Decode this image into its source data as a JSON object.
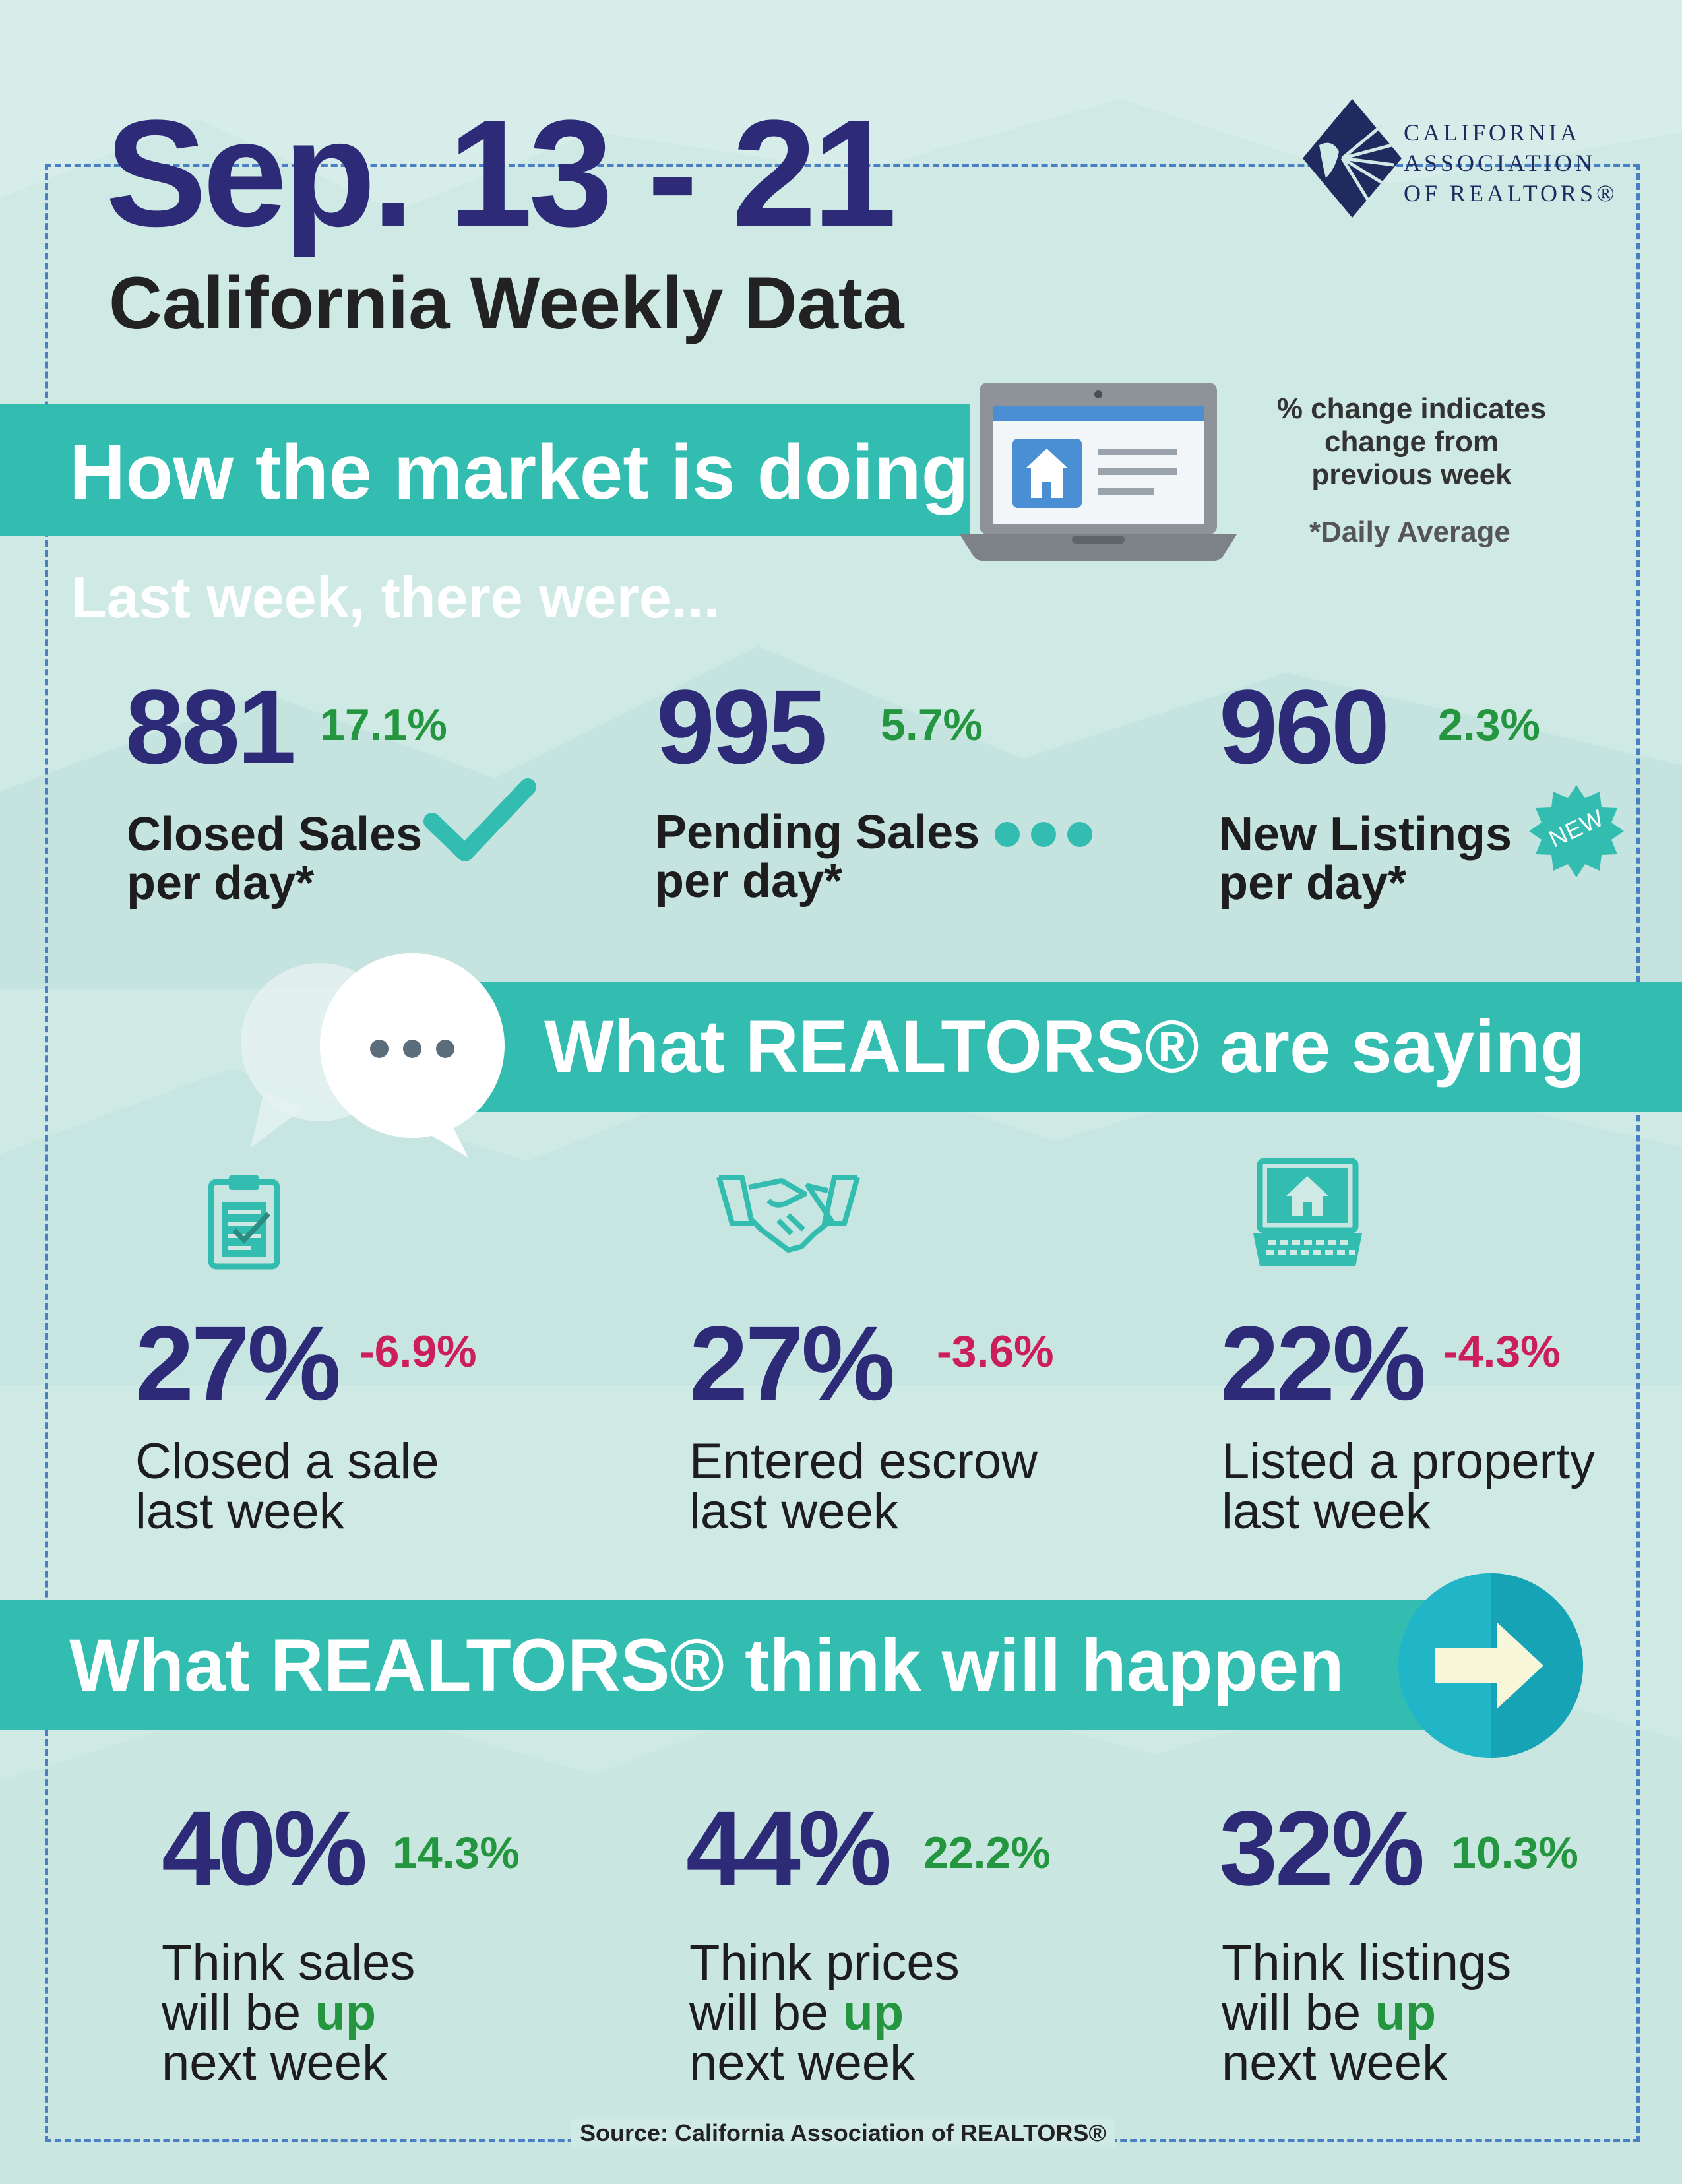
{
  "header": {
    "date_range": "Sep. 13 - 21",
    "subtitle": "California Weekly Data",
    "logo_lines": [
      "CALIFORNIA",
      "ASSOCIATION",
      "OF REALTORS®"
    ]
  },
  "market": {
    "title": "How the market is doing",
    "note_lines": [
      "% change indicates",
      "change from",
      "previous week"
    ],
    "daily_note": "*Daily Average",
    "intro": "Last week, there were...",
    "stats": [
      {
        "value": "881",
        "change": "17.1%",
        "label_line1": "Closed Sales",
        "label_line2": "per day*",
        "icon": "checkmark-icon"
      },
      {
        "value": "995",
        "change": "5.7%",
        "label_line1": "Pending Sales",
        "label_line2": "per day*",
        "icon": "dots-icon"
      },
      {
        "value": "960",
        "change": "2.3%",
        "label_line1": "New Listings",
        "label_line2": "per day*",
        "icon": "new-badge-icon",
        "badge_text": "NEW"
      }
    ]
  },
  "saying": {
    "title": "What REALTORS® are saying",
    "stats": [
      {
        "value": "27%",
        "change": "-6.9%",
        "label_line1": "Closed a sale",
        "label_line2": "last week",
        "icon": "clipboard-icon"
      },
      {
        "value": "27%",
        "change": "-3.6%",
        "label_line1": "Entered escrow",
        "label_line2": "last week",
        "icon": "handshake-icon"
      },
      {
        "value": "22%",
        "change": "-4.3%",
        "label_line1": "Listed a property",
        "label_line2": "last week",
        "icon": "laptop-house-icon"
      }
    ]
  },
  "think": {
    "title": "What REALTORS® think will happen",
    "stats": [
      {
        "value": "40%",
        "change": "14.3%",
        "label_line1": "Think sales",
        "label_line2_pre": "will be ",
        "label_line2_up": "up",
        "label_line3": "next week"
      },
      {
        "value": "44%",
        "change": "22.2%",
        "label_line1": "Think prices",
        "label_line2_pre": "will be ",
        "label_line2_up": "up",
        "label_line3": "next week"
      },
      {
        "value": "32%",
        "change": "10.3%",
        "label_line1": "Think listings",
        "label_line2_pre": "will be ",
        "label_line2_up": "up",
        "label_line3": "next week"
      }
    ]
  },
  "footer": {
    "source": "Source: California Association of REALTORS®"
  },
  "colors": {
    "navy": "#2d2a78",
    "teal": "#33bdb0",
    "green": "#23963f",
    "red": "#cc1f5a",
    "dash_blue": "#4a7fc6",
    "background": "#cfe9e4"
  }
}
